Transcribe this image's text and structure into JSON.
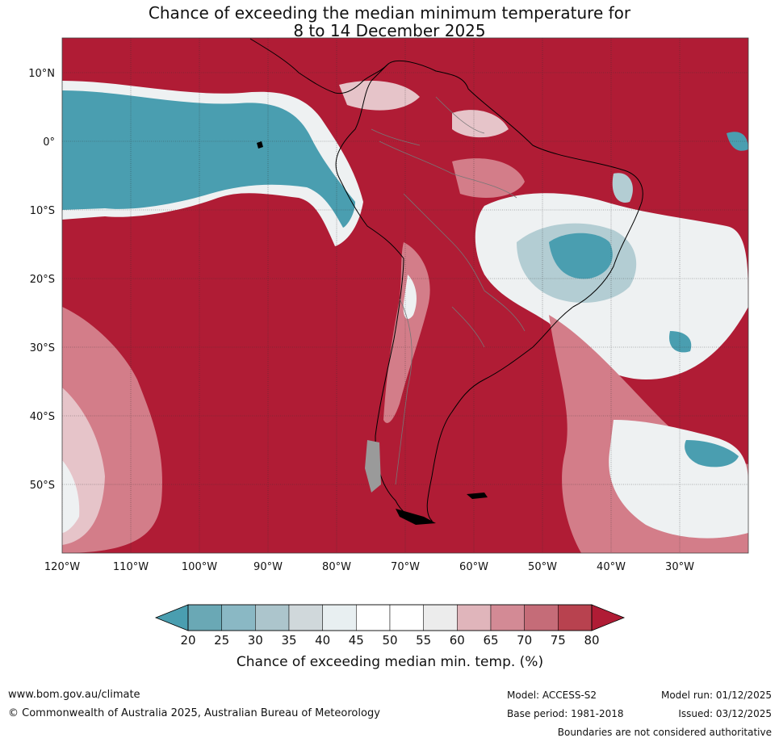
{
  "title": {
    "line1": "Chance of exceeding the median minimum temperature for",
    "line2": "8 to 14 December 2025"
  },
  "map": {
    "lat_labels": [
      "10°N",
      "0°",
      "10°S",
      "20°S",
      "30°S",
      "40°S",
      "50°S"
    ],
    "lat_values": [
      10,
      0,
      -10,
      -20,
      -30,
      -40,
      -50
    ],
    "lon_labels": [
      "120°W",
      "110°W",
      "100°W",
      "90°W",
      "80°W",
      "70°W",
      "60°W",
      "50°W",
      "40°W",
      "30°W"
    ],
    "lon_values": [
      -120,
      -110,
      -100,
      -90,
      -80,
      -70,
      -60,
      -50,
      -40,
      -30
    ],
    "extent": {
      "lon_min": -120,
      "lon_max": -20,
      "lat_min": -60,
      "lat_max": 15
    }
  },
  "colorbar": {
    "ticks": [
      "20",
      "25",
      "30",
      "35",
      "40",
      "45",
      "50",
      "55",
      "60",
      "65",
      "70",
      "75",
      "80"
    ],
    "colors": [
      "#6aa8b5",
      "#8ab8c4",
      "#acc5cc",
      "#d0d8db",
      "#e8eff1",
      "#ffffff",
      "#ffffff",
      "#ececec",
      "#e0b5bb",
      "#d38a95",
      "#c56c78",
      "#b8424f"
    ],
    "low_color": "#4a9eb0",
    "high_color": "#b01c35",
    "label": "Chance of exceeding median min. temp. (%)"
  },
  "colors": {
    "high": "#b01c35",
    "h75": "#c44a58",
    "h70": "#d37d89",
    "h60": "#e6c4c9",
    "neutral": "#eef1f2",
    "l35": "#b3cdd3",
    "low": "#4a9eb0",
    "land_mask": "#9a9a9a"
  },
  "footer": {
    "website": "www.bom.gov.au/climate",
    "copyright": "© Commonwealth of Australia 2025, Australian Bureau of Meteorology",
    "model": "Model: ACCESS-S2",
    "base_period": "Base period: 1981-2018",
    "model_run": "Model run: 01/12/2025",
    "issued": "Issued: 03/12/2025",
    "disclaimer": "Boundaries are not considered authoritative"
  }
}
